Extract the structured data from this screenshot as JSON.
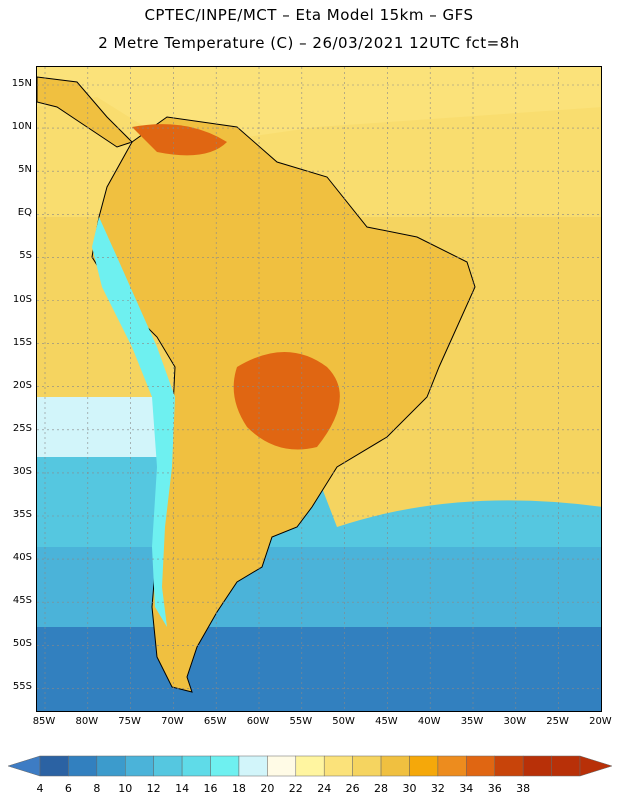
{
  "header": {
    "title_line1": "CPTEC/INPE/MCT –  Eta Model 15km – GFS",
    "title_line2": "2 Metre Temperature (C) – 26/03/2021 12UTC fct=8h"
  },
  "axes": {
    "lat_labels": [
      "15N",
      "10N",
      "5N",
      "EQ",
      "5S",
      "10S",
      "15S",
      "20S",
      "25S",
      "30S",
      "35S",
      "40S",
      "45S",
      "50S",
      "55S"
    ],
    "lon_labels": [
      "85W",
      "80W",
      "75W",
      "70W",
      "65W",
      "60W",
      "55W",
      "50W",
      "45W",
      "40W",
      "35W",
      "30W",
      "25W",
      "20W"
    ]
  },
  "colorbar": {
    "levels": [
      "4",
      "6",
      "8",
      "10",
      "12",
      "14",
      "16",
      "18",
      "20",
      "22",
      "24",
      "26",
      "28",
      "30",
      "32",
      "34",
      "36",
      "38"
    ],
    "colors": [
      "#2b62a3",
      "#3280bf",
      "#3c9bcc",
      "#4bb3d9",
      "#55c7e0",
      "#5fdbe8",
      "#6ef0f0",
      "#d2f5fa",
      "#fffbe6",
      "#fff5a0",
      "#fbe27a",
      "#f5d460",
      "#f0c040",
      "#f5a80a",
      "#ed8c1e",
      "#e06612",
      "#c8440a",
      "#b83008",
      "#b83008"
    ],
    "under_color": "#3d7cc4",
    "over_color": "#b83008"
  },
  "map": {
    "colors": {
      "ocean_warm": "#f5d460",
      "ocean_mid": "#fbe27a",
      "ocean_cool": "#d2f5fa",
      "ocean_cold": "#55c7e0",
      "ocean_colder": "#4bb3d9",
      "ocean_coldest": "#3280bf",
      "land_warm": "#f0c040",
      "land_hot": "#e06612",
      "andes_cold": "#6ef0f0",
      "caribbean": "#fbe27a",
      "grid": "#888888",
      "coast": "#000000"
    }
  }
}
